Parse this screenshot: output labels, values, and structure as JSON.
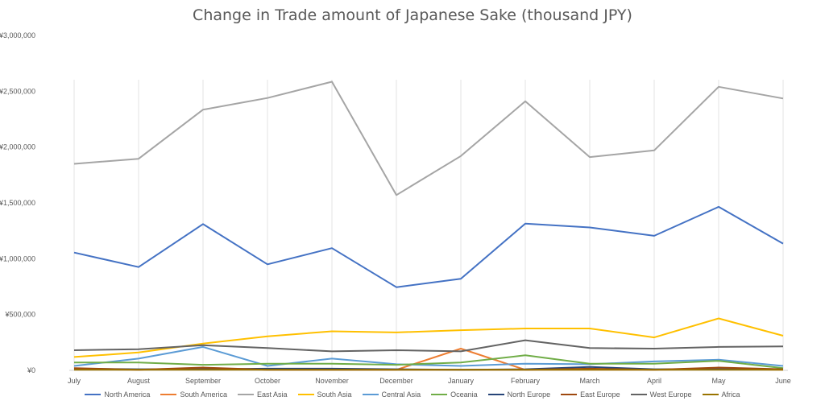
{
  "chart_data": {
    "type": "line",
    "title": "Change in Trade amount of Japanese Sake (thousand JPY)",
    "xlabel": "",
    "ylabel": "",
    "categories": [
      "July",
      "August",
      "September",
      "October",
      "November",
      "December",
      "January",
      "February",
      "March",
      "April",
      "May",
      "June"
    ],
    "ylim": [
      0,
      3000000
    ],
    "yticks": [
      0,
      500000,
      1000000,
      1500000,
      2000000,
      2500000,
      3000000
    ],
    "ytick_labels": [
      "¥0",
      "¥500,000",
      "¥1,000,000",
      "¥1,500,000",
      "¥2,000,000",
      "¥2,500,000",
      "¥3,000,000"
    ],
    "grid": "vertical",
    "legend_position": "bottom",
    "series": [
      {
        "name": "North America",
        "color": "#4472C4",
        "values": [
          1055000,
          925000,
          1310000,
          950000,
          1095000,
          745000,
          820000,
          1315000,
          1280000,
          1205000,
          1465000,
          1135000
        ]
      },
      {
        "name": "South America",
        "color": "#ED7D31",
        "values": [
          10000,
          5000,
          15000,
          5000,
          5000,
          5000,
          195000,
          5000,
          5000,
          5000,
          10000,
          5000
        ]
      },
      {
        "name": "East Asia",
        "color": "#A5A5A5",
        "values": [
          1850000,
          1895000,
          2335000,
          2440000,
          2585000,
          1570000,
          1920000,
          2410000,
          1910000,
          1970000,
          2540000,
          2435000
        ]
      },
      {
        "name": "South Asia",
        "color": "#FFC000",
        "values": [
          120000,
          160000,
          240000,
          305000,
          350000,
          340000,
          360000,
          375000,
          375000,
          295000,
          465000,
          310000
        ]
      },
      {
        "name": "Central Asia",
        "color": "#5B9BD5",
        "values": [
          40000,
          105000,
          210000,
          40000,
          105000,
          55000,
          40000,
          60000,
          55000,
          80000,
          95000,
          40000
        ]
      },
      {
        "name": "Oceania",
        "color": "#70AD47",
        "values": [
          70000,
          70000,
          50000,
          60000,
          60000,
          50000,
          70000,
          135000,
          60000,
          60000,
          85000,
          20000
        ]
      },
      {
        "name": "North Europe",
        "color": "#264478",
        "values": [
          15000,
          10000,
          10000,
          15000,
          15000,
          10000,
          5000,
          10000,
          30000,
          10000,
          10000,
          10000
        ]
      },
      {
        "name": "East Europe",
        "color": "#9E480E",
        "values": [
          20000,
          5000,
          25000,
          5000,
          5000,
          5000,
          5000,
          5000,
          15000,
          5000,
          25000,
          10000
        ]
      },
      {
        "name": "West Europe",
        "color": "#636363",
        "values": [
          180000,
          190000,
          225000,
          200000,
          170000,
          180000,
          170000,
          270000,
          200000,
          195000,
          210000,
          215000
        ]
      },
      {
        "name": "Africa",
        "color": "#997300",
        "values": [
          5000,
          5000,
          5000,
          5000,
          5000,
          5000,
          5000,
          5000,
          5000,
          5000,
          5000,
          5000
        ]
      }
    ]
  }
}
